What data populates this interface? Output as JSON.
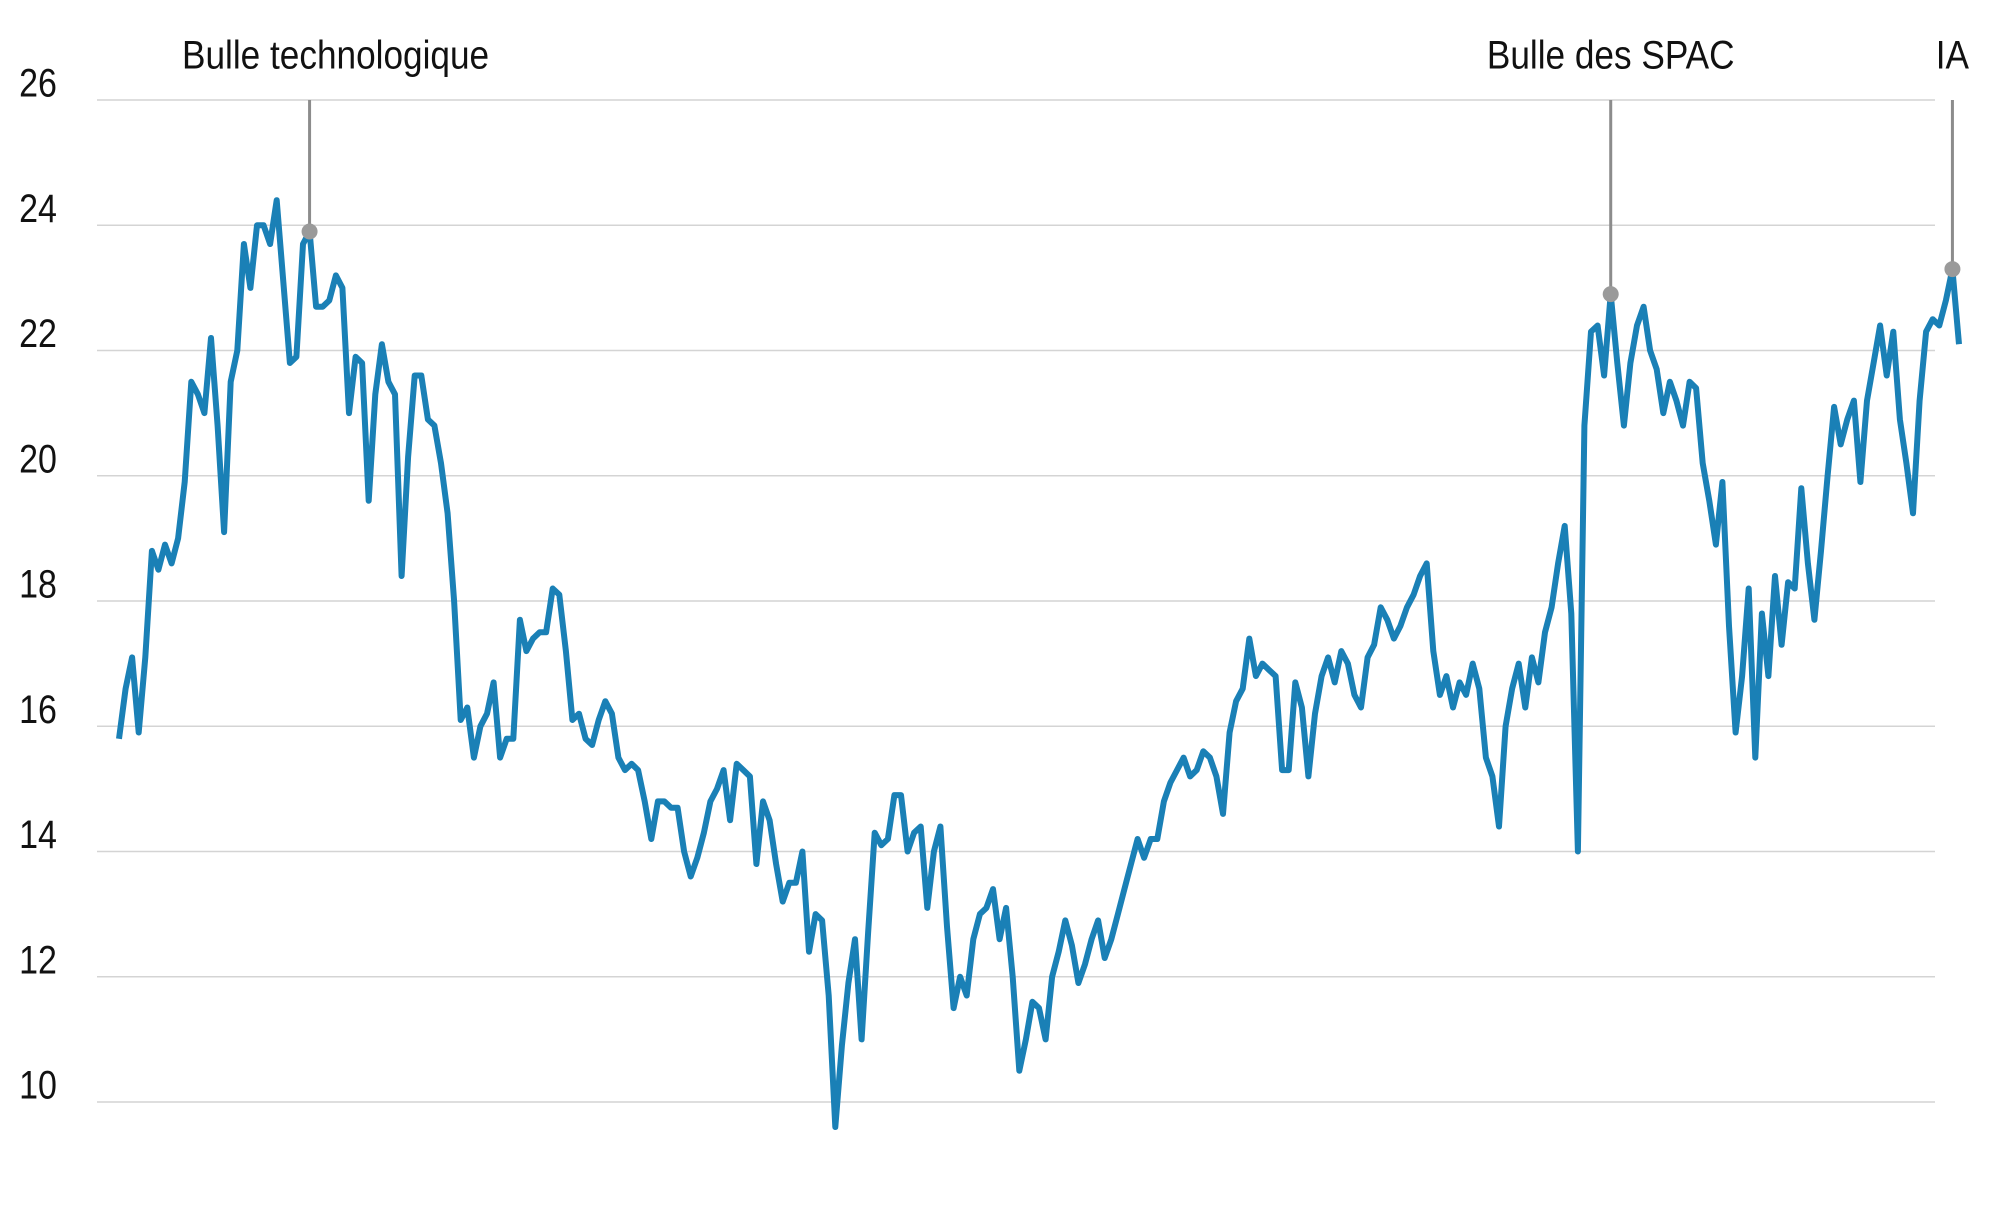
{
  "chart_data": {
    "type": "line",
    "color": "#1a80b6",
    "ylim": [
      9.4,
      26
    ],
    "yticks": [
      10,
      12,
      14,
      16,
      18,
      20,
      22,
      24,
      26
    ],
    "grid": true,
    "annotations": [
      {
        "label": "Bulle technologique",
        "value": 23.9
      },
      {
        "label": "Bulle des SPAC",
        "value": 22.9
      },
      {
        "label": "IA",
        "value": 23.3
      }
    ],
    "values": [
      15.8,
      16.6,
      17.1,
      15.9,
      17.1,
      18.8,
      18.5,
      18.9,
      18.6,
      19.0,
      19.9,
      21.5,
      21.3,
      21.0,
      22.2,
      20.8,
      19.1,
      21.5,
      22.0,
      23.7,
      23.0,
      24.0,
      24.0,
      23.7,
      24.4,
      23.1,
      21.8,
      21.9,
      23.7,
      23.9,
      22.7,
      22.7,
      22.8,
      23.2,
      23.0,
      21.0,
      21.9,
      21.8,
      19.6,
      21.3,
      22.1,
      21.5,
      21.3,
      18.4,
      20.3,
      21.6,
      21.6,
      20.9,
      20.8,
      20.2,
      19.4,
      18.0,
      16.1,
      16.3,
      15.5,
      16.0,
      16.2,
      16.7,
      15.5,
      15.8,
      15.8,
      17.7,
      17.2,
      17.4,
      17.5,
      17.5,
      18.2,
      18.1,
      17.2,
      16.1,
      16.2,
      15.8,
      15.7,
      16.1,
      16.4,
      16.2,
      15.5,
      15.3,
      15.4,
      15.3,
      14.8,
      14.2,
      14.8,
      14.8,
      14.7,
      14.7,
      14.0,
      13.6,
      13.9,
      14.3,
      14.8,
      15.0,
      15.3,
      14.5,
      15.4,
      15.3,
      15.2,
      13.8,
      14.8,
      14.5,
      13.8,
      13.2,
      13.5,
      13.5,
      14.0,
      12.4,
      13.0,
      12.9,
      11.7,
      9.6,
      10.9,
      11.9,
      12.6,
      11.0,
      12.7,
      14.3,
      14.1,
      14.2,
      14.9,
      14.9,
      14.0,
      14.3,
      14.4,
      13.1,
      14.0,
      14.4,
      12.8,
      11.5,
      12.0,
      11.7,
      12.6,
      13.0,
      13.1,
      13.4,
      12.6,
      13.1,
      12.0,
      10.5,
      11.0,
      11.6,
      11.5,
      11.0,
      12.0,
      12.4,
      12.9,
      12.5,
      11.9,
      12.2,
      12.6,
      12.9,
      12.3,
      12.6,
      13.0,
      13.4,
      13.8,
      14.2,
      13.9,
      14.2,
      14.2,
      14.8,
      15.1,
      15.3,
      15.5,
      15.2,
      15.3,
      15.6,
      15.5,
      15.2,
      14.6,
      15.9,
      16.4,
      16.6,
      17.4,
      16.8,
      17.0,
      16.9,
      16.8,
      15.3,
      15.3,
      16.7,
      16.3,
      15.2,
      16.2,
      16.8,
      17.1,
      16.7,
      17.2,
      17.0,
      16.5,
      16.3,
      17.1,
      17.3,
      17.9,
      17.7,
      17.4,
      17.6,
      17.9,
      18.1,
      18.4,
      18.6,
      17.2,
      16.5,
      16.8,
      16.3,
      16.7,
      16.5,
      17.0,
      16.6,
      15.5,
      15.2,
      14.4,
      16.0,
      16.6,
      17.0,
      16.3,
      17.1,
      16.7,
      17.5,
      17.9,
      18.6,
      19.2,
      17.8,
      14.0,
      20.8,
      22.3,
      22.4,
      21.6,
      22.9,
      21.8,
      20.8,
      21.8,
      22.4,
      22.7,
      22.0,
      21.7,
      21.0,
      21.5,
      21.2,
      20.8,
      21.5,
      21.4,
      20.2,
      19.6,
      18.9,
      19.9,
      17.6,
      15.9,
      16.8,
      18.2,
      15.5,
      17.8,
      16.8,
      18.4,
      17.3,
      18.3,
      18.2,
      19.8,
      18.6,
      17.7,
      18.8,
      20.0,
      21.1,
      20.5,
      20.9,
      21.2,
      19.9,
      21.2,
      21.8,
      22.4,
      21.6,
      22.3,
      20.9,
      20.2,
      19.4,
      21.2,
      22.3,
      22.5,
      22.4,
      22.8,
      23.3,
      22.1
    ]
  }
}
